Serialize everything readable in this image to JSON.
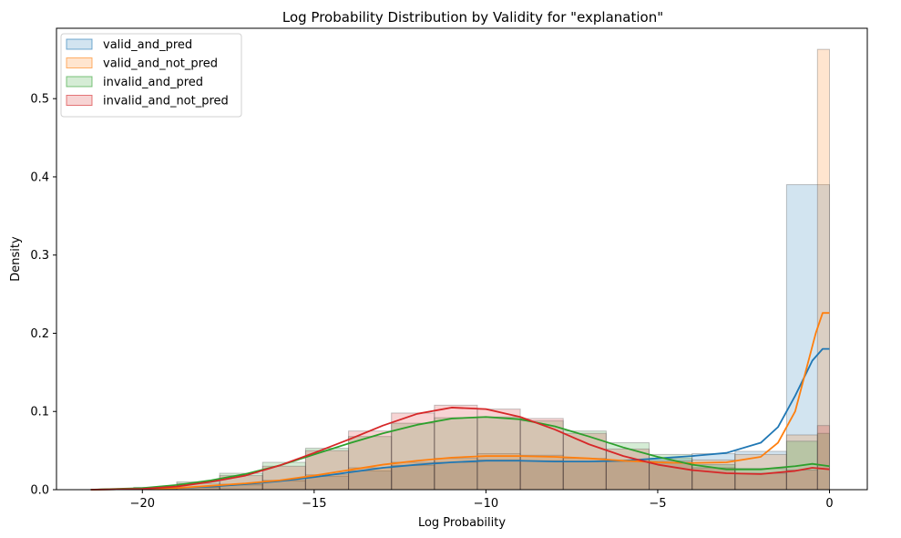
{
  "chart_data": {
    "type": "histogram",
    "title": "Log Probability Distribution by Validity for \"explanation\"",
    "xlabel": "Log Probability",
    "ylabel": "Density",
    "xlim": [
      -22.5,
      1.1
    ],
    "ylim": [
      0,
      0.59
    ],
    "xticks": [
      -20,
      -15,
      -10,
      -5,
      0
    ],
    "yticks": [
      0.0,
      0.1,
      0.2,
      0.3,
      0.4,
      0.5
    ],
    "ytick_labels": [
      "0.0",
      "0.1",
      "0.2",
      "0.3",
      "0.4",
      "0.5"
    ],
    "grid": false,
    "legend_position": "top-left",
    "series": [
      {
        "name": "valid_and_pred",
        "color": "#1f77b4",
        "bins": [
          {
            "x0": -21.5,
            "x1": -20.25,
            "h": 0.0
          },
          {
            "x0": -20.25,
            "x1": -19.0,
            "h": 0.0
          },
          {
            "x0": -19.0,
            "x1": -17.75,
            "h": 0.003
          },
          {
            "x0": -17.75,
            "x1": -16.5,
            "h": 0.006
          },
          {
            "x0": -16.5,
            "x1": -15.25,
            "h": 0.011
          },
          {
            "x0": -15.25,
            "x1": -14.0,
            "h": 0.017
          },
          {
            "x0": -14.0,
            "x1": -12.75,
            "h": 0.024
          },
          {
            "x0": -12.75,
            "x1": -11.5,
            "h": 0.031
          },
          {
            "x0": -11.5,
            "x1": -10.25,
            "h": 0.035
          },
          {
            "x0": -10.25,
            "x1": -9.0,
            "h": 0.038
          },
          {
            "x0": -9.0,
            "x1": -7.75,
            "h": 0.037
          },
          {
            "x0": -7.75,
            "x1": -6.5,
            "h": 0.036
          },
          {
            "x0": -6.5,
            "x1": -5.25,
            "h": 0.036
          },
          {
            "x0": -5.25,
            "x1": -4.0,
            "h": 0.04
          },
          {
            "x0": -4.0,
            "x1": -2.75,
            "h": 0.046
          },
          {
            "x0": -2.75,
            "x1": -1.25,
            "h": 0.049
          },
          {
            "x0": -1.25,
            "x1": 0.0,
            "h": 0.39
          }
        ],
        "kde": {
          "x": [
            -21.5,
            -20,
            -19,
            -18,
            -17,
            -16,
            -15,
            -14,
            -13,
            -12,
            -11,
            -10,
            -9,
            -8,
            -7,
            -6,
            -5,
            -4,
            -3,
            -2,
            -1.5,
            -1,
            -0.5,
            -0.2,
            0
          ],
          "y": [
            0.0,
            0.001,
            0.002,
            0.004,
            0.007,
            0.011,
            0.016,
            0.022,
            0.028,
            0.032,
            0.035,
            0.037,
            0.037,
            0.036,
            0.036,
            0.037,
            0.04,
            0.043,
            0.047,
            0.06,
            0.08,
            0.12,
            0.165,
            0.18,
            0.18
          ]
        }
      },
      {
        "name": "valid_and_not_pred",
        "color": "#ff7f0e",
        "bins": [
          {
            "x0": -21.5,
            "x1": -20.25,
            "h": 0.0
          },
          {
            "x0": -20.25,
            "x1": -19.0,
            "h": 0.001
          },
          {
            "x0": -19.0,
            "x1": -17.75,
            "h": 0.003
          },
          {
            "x0": -17.75,
            "x1": -16.5,
            "h": 0.007
          },
          {
            "x0": -16.5,
            "x1": -15.25,
            "h": 0.012
          },
          {
            "x0": -15.25,
            "x1": -14.0,
            "h": 0.019
          },
          {
            "x0": -14.0,
            "x1": -12.75,
            "h": 0.028
          },
          {
            "x0": -12.75,
            "x1": -11.5,
            "h": 0.035
          },
          {
            "x0": -11.5,
            "x1": -10.25,
            "h": 0.04
          },
          {
            "x0": -10.25,
            "x1": -9.0,
            "h": 0.046
          },
          {
            "x0": -9.0,
            "x1": -7.75,
            "h": 0.044
          },
          {
            "x0": -7.75,
            "x1": -6.5,
            "h": 0.04
          },
          {
            "x0": -6.5,
            "x1": -5.25,
            "h": 0.038
          },
          {
            "x0": -5.25,
            "x1": -4.0,
            "h": 0.034
          },
          {
            "x0": -4.0,
            "x1": -2.75,
            "h": 0.038
          },
          {
            "x0": -2.75,
            "x1": -1.25,
            "h": 0.045
          },
          {
            "x0": -1.25,
            "x1": -0.35,
            "h": 0.07
          },
          {
            "x0": -0.35,
            "x1": 0.0,
            "h": 0.563
          }
        ],
        "kde": {
          "x": [
            -21.5,
            -20,
            -19,
            -18,
            -17,
            -16,
            -15,
            -14,
            -13,
            -12,
            -11,
            -10,
            -9,
            -8,
            -7,
            -6,
            -5,
            -4,
            -3,
            -2,
            -1.5,
            -1,
            -0.7,
            -0.4,
            -0.2,
            0
          ],
          "y": [
            0.0,
            0.001,
            0.002,
            0.005,
            0.008,
            0.012,
            0.018,
            0.025,
            0.032,
            0.037,
            0.041,
            0.043,
            0.043,
            0.042,
            0.04,
            0.037,
            0.035,
            0.034,
            0.035,
            0.042,
            0.06,
            0.1,
            0.15,
            0.2,
            0.226,
            0.226
          ]
        }
      },
      {
        "name": "invalid_and_pred",
        "color": "#2ca02c",
        "bins": [
          {
            "x0": -21.5,
            "x1": -20.25,
            "h": 0.0
          },
          {
            "x0": -20.25,
            "x1": -19.0,
            "h": 0.003
          },
          {
            "x0": -19.0,
            "x1": -17.75,
            "h": 0.01
          },
          {
            "x0": -17.75,
            "x1": -16.5,
            "h": 0.021
          },
          {
            "x0": -16.5,
            "x1": -15.25,
            "h": 0.035
          },
          {
            "x0": -15.25,
            "x1": -14.0,
            "h": 0.053
          },
          {
            "x0": -14.0,
            "x1": -12.75,
            "h": 0.068
          },
          {
            "x0": -12.75,
            "x1": -11.5,
            "h": 0.085
          },
          {
            "x0": -11.5,
            "x1": -10.25,
            "h": 0.092
          },
          {
            "x0": -10.25,
            "x1": -9.0,
            "h": 0.093
          },
          {
            "x0": -9.0,
            "x1": -7.75,
            "h": 0.088
          },
          {
            "x0": -7.75,
            "x1": -6.5,
            "h": 0.075
          },
          {
            "x0": -6.5,
            "x1": -5.25,
            "h": 0.06
          },
          {
            "x0": -5.25,
            "x1": -4.0,
            "h": 0.045
          },
          {
            "x0": -4.0,
            "x1": -2.75,
            "h": 0.032
          },
          {
            "x0": -2.75,
            "x1": -1.25,
            "h": 0.027
          },
          {
            "x0": -1.25,
            "x1": -0.35,
            "h": 0.062
          },
          {
            "x0": -0.35,
            "x1": 0.0,
            "h": 0.072
          }
        ],
        "kde": {
          "x": [
            -21.5,
            -20,
            -19,
            -18,
            -17,
            -16,
            -15,
            -14,
            -13,
            -12,
            -11,
            -10,
            -9,
            -8,
            -7,
            -6,
            -5,
            -4,
            -3,
            -2,
            -1,
            -0.5,
            0
          ],
          "y": [
            0.0,
            0.002,
            0.006,
            0.012,
            0.02,
            0.031,
            0.045,
            0.059,
            0.072,
            0.083,
            0.091,
            0.093,
            0.09,
            0.081,
            0.068,
            0.054,
            0.042,
            0.032,
            0.026,
            0.026,
            0.03,
            0.033,
            0.03
          ]
        }
      },
      {
        "name": "invalid_and_not_pred",
        "color": "#d62728",
        "bins": [
          {
            "x0": -21.5,
            "x1": -20.25,
            "h": 0.0
          },
          {
            "x0": -20.25,
            "x1": -19.0,
            "h": 0.002
          },
          {
            "x0": -19.0,
            "x1": -17.75,
            "h": 0.008
          },
          {
            "x0": -17.75,
            "x1": -16.5,
            "h": 0.018
          },
          {
            "x0": -16.5,
            "x1": -15.25,
            "h": 0.03
          },
          {
            "x0": -15.25,
            "x1": -14.0,
            "h": 0.05
          },
          {
            "x0": -14.0,
            "x1": -12.75,
            "h": 0.075
          },
          {
            "x0": -12.75,
            "x1": -11.5,
            "h": 0.098
          },
          {
            "x0": -11.5,
            "x1": -10.25,
            "h": 0.108
          },
          {
            "x0": -10.25,
            "x1": -9.0,
            "h": 0.103
          },
          {
            "x0": -9.0,
            "x1": -7.75,
            "h": 0.091
          },
          {
            "x0": -7.75,
            "x1": -6.5,
            "h": 0.072
          },
          {
            "x0": -6.5,
            "x1": -5.25,
            "h": 0.052
          },
          {
            "x0": -5.25,
            "x1": -4.0,
            "h": 0.037
          },
          {
            "x0": -4.0,
            "x1": -2.75,
            "h": 0.028
          },
          {
            "x0": -2.75,
            "x1": -1.25,
            "h": 0.021
          },
          {
            "x0": -1.25,
            "x1": -0.35,
            "h": 0.025
          },
          {
            "x0": -0.35,
            "x1": 0.0,
            "h": 0.082
          }
        ],
        "kde": {
          "x": [
            -21.5,
            -20,
            -19,
            -18,
            -17,
            -16,
            -15,
            -14,
            -13,
            -12,
            -11,
            -10,
            -9,
            -8,
            -7,
            -6,
            -5,
            -4,
            -3,
            -2,
            -1,
            -0.5,
            0
          ],
          "y": [
            0.0,
            0.001,
            0.004,
            0.01,
            0.018,
            0.031,
            0.047,
            0.064,
            0.082,
            0.097,
            0.105,
            0.103,
            0.093,
            0.077,
            0.058,
            0.043,
            0.032,
            0.025,
            0.021,
            0.02,
            0.024,
            0.028,
            0.026
          ]
        }
      }
    ]
  }
}
